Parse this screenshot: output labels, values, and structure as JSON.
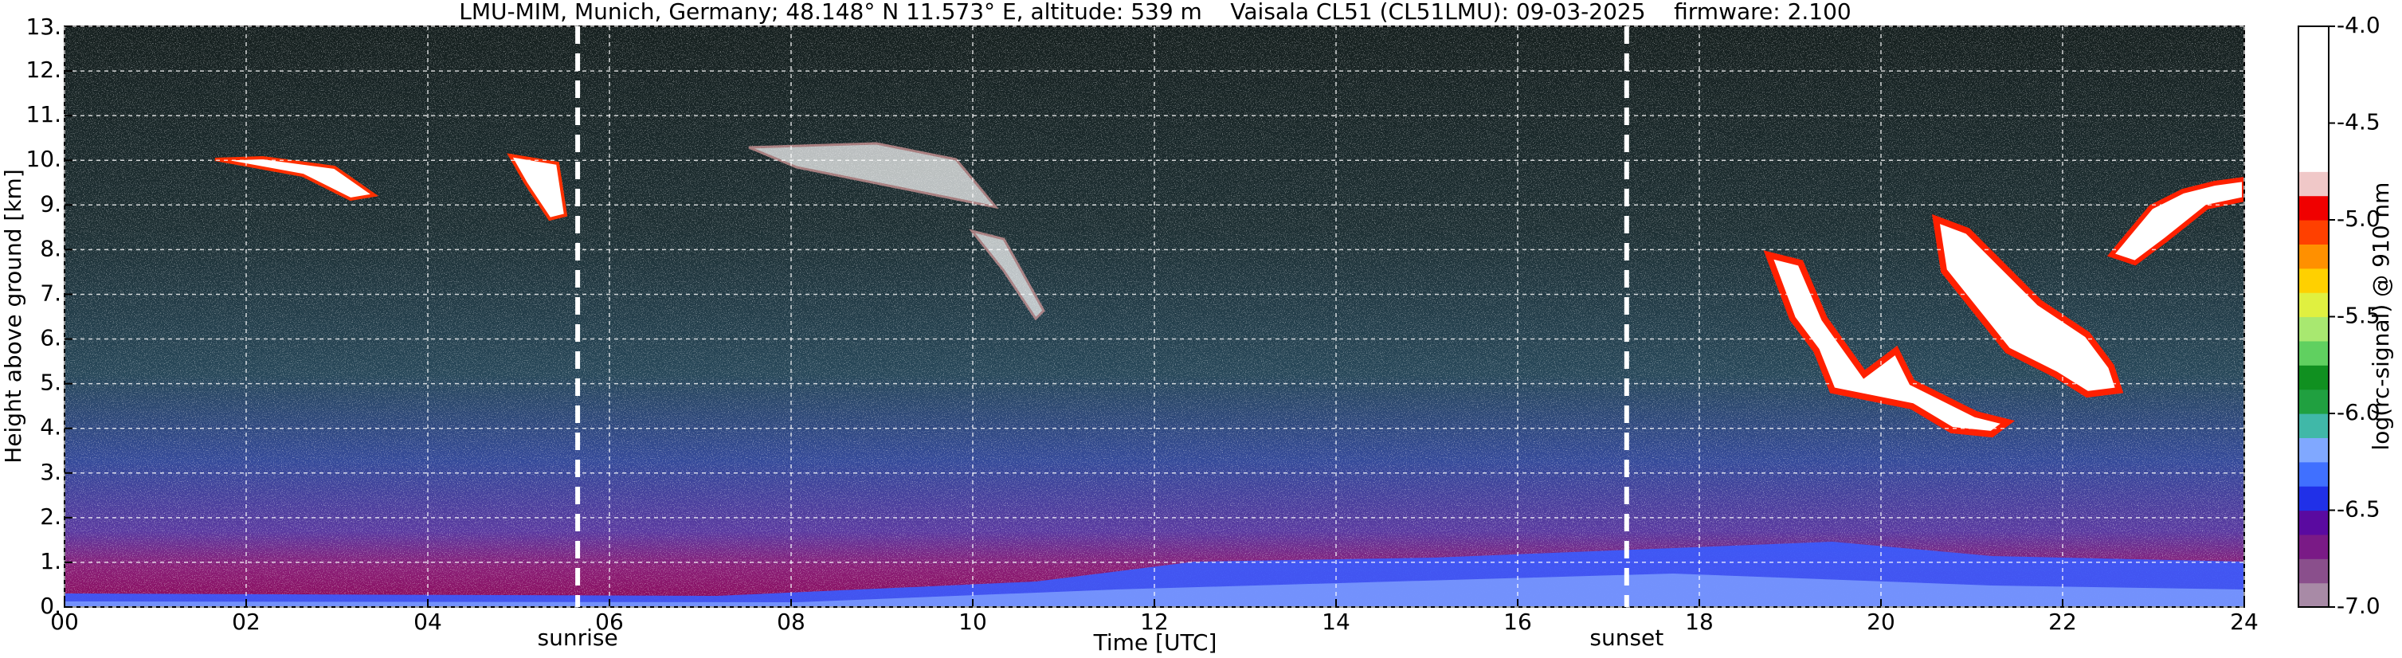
{
  "chart_data": {
    "type": "heatmap",
    "title": "LMU-MIM, Munich, Germany; 48.148° N 11.573° E, altitude: 539 m    Vaisala CL51 (CL51LMU): 09-03-2025    firmware: 2.100",
    "xlabel": "Time [UTC]",
    "ylabel": "Height above ground [km]",
    "xlim": [
      0,
      24
    ],
    "xticks": [
      {
        "value": 0,
        "label": "00"
      },
      {
        "value": 2,
        "label": "02"
      },
      {
        "value": 4,
        "label": "04"
      },
      {
        "value": 6,
        "label": "06"
      },
      {
        "value": 8,
        "label": "08"
      },
      10,
      12,
      14,
      16,
      18,
      20,
      22,
      24
    ],
    "ylim": [
      0,
      13
    ],
    "yticks": [
      {
        "value": 0,
        "label": "0."
      },
      {
        "value": 1,
        "label": "1."
      },
      {
        "value": 2,
        "label": "2."
      },
      {
        "value": 3,
        "label": "3."
      },
      {
        "value": 4,
        "label": "4."
      },
      {
        "value": 5,
        "label": "5."
      },
      {
        "value": 6,
        "label": "6."
      },
      {
        "value": 7,
        "label": "7."
      },
      {
        "value": 8,
        "label": "8."
      },
      {
        "value": 9,
        "label": "9."
      },
      {
        "value": 10,
        "label": "10."
      },
      {
        "value": 11,
        "label": "11."
      },
      {
        "value": 12,
        "label": "12."
      },
      {
        "value": 13,
        "label": "13."
      }
    ],
    "grid": true,
    "annotations": [
      {
        "text": "sunrise",
        "x": 5.65
      },
      {
        "text": "sunset",
        "x": 17.2
      }
    ],
    "colorbar": {
      "label": "log(rc-signal) @ 910 nm",
      "lim": [
        -7,
        -4
      ],
      "ticks": [
        {
          "value": -7,
          "label": "-7.0"
        },
        {
          "value": -6.5,
          "label": "-6.5"
        },
        {
          "value": -6,
          "label": "-6.0"
        },
        {
          "value": -5.5,
          "label": "-5.5"
        },
        {
          "value": -5,
          "label": "-5.0"
        },
        {
          "value": -4.5,
          "label": "-4.5"
        },
        {
          "value": -4,
          "label": "-4.0"
        }
      ],
      "colors": [
        "#a88aa6",
        "#8a4f8c",
        "#7a1a86",
        "#5a0aa0",
        "#2030e8",
        "#4070ff",
        "#80a8ff",
        "#40b8a8",
        "#20a040",
        "#109020",
        "#60d060",
        "#a8e870",
        "#e0f040",
        "#ffd000",
        "#ff9000",
        "#ff4000",
        "#f00000",
        "#f0c8c8",
        "#ffffff",
        "#ffffff",
        "#ffffff",
        "#ffffff",
        "#ffffff",
        "#ffffff"
      ]
    }
  }
}
